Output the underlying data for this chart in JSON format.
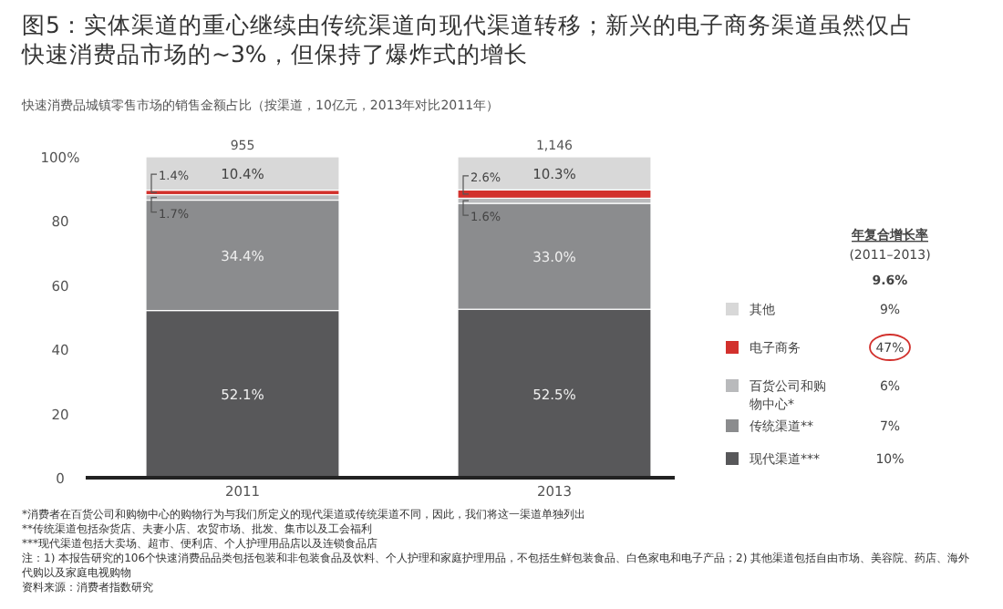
{
  "chart_data": {
    "type": "bar",
    "stacked": true,
    "title": "图5：实体渠道的重心继续由传统渠道向现代渠道转移；新兴的电子商务渠道虽然仅占快速消费品市场的~3%，但保持了爆炸式的增长",
    "subtitle": "快速消费品城镇零售市场的销售金额占比（按渠道，10亿元，2013年对比2011年）",
    "categories": [
      "2011",
      "2013"
    ],
    "series": [
      {
        "name": "现代渠道***",
        "color": "#58585a",
        "values": [
          52.1,
          52.5
        ],
        "value_labels": [
          "52.1%",
          "52.5%"
        ]
      },
      {
        "name": "传统渠道**",
        "color": "#8b8c8e",
        "values": [
          34.4,
          33.0
        ],
        "value_labels": [
          "34.4%",
          "33.0%"
        ]
      },
      {
        "name": "百货公司和购物中心*",
        "color": "#b9babc",
        "values": [
          1.7,
          1.6
        ],
        "value_labels": [
          "1.7%",
          "1.6%"
        ]
      },
      {
        "name": "电子商务",
        "color": "#d2302c",
        "values": [
          1.4,
          2.6
        ],
        "value_labels": [
          "1.4%",
          "2.6%"
        ]
      },
      {
        "name": "其他",
        "color": "#d8d8d8",
        "values": [
          10.4,
          10.3
        ],
        "value_labels": [
          "10.4%",
          "10.3%"
        ]
      }
    ],
    "ylim": [
      0,
      100
    ],
    "yticks": [
      0,
      20,
      40,
      60,
      80,
      {
        "value": 100,
        "label": "100%"
      }
    ],
    "legend": "right",
    "annotations": [
      "年复合增长率",
      "(2011–2013)",
      "9.6%",
      "9%",
      "47%",
      "6%",
      "7%",
      "10%",
      "*消费者在百货公司和购物中心的购物行为与我们所定义的现代渠道或传统渠道不同，因此，我们将这一渠道单独列出",
      "**传统渠道包括杂货店、夫妻小店、农贸市场、批发、集市以及工会福利",
      "***现代渠道包括大卖场、超市、便利店、个人护理用品店以及连锁食品店",
      "注：1) 本报告研究的106个快速消费品品类包括包装和非包装食品及饮料、个人护理和家庭护理用品，不包括生鲜包装食品、白色家电和电子产品；2) 其他渠道包括自由市场、美容院、药店、海外代购以及家庭电视购物",
      "资料来源：消费者指数研究",
      {
        "text": "955",
        "x": "2011",
        "y": 100
      },
      {
        "text": "1,146",
        "x": "2013",
        "y": 100
      }
    ]
  }
}
